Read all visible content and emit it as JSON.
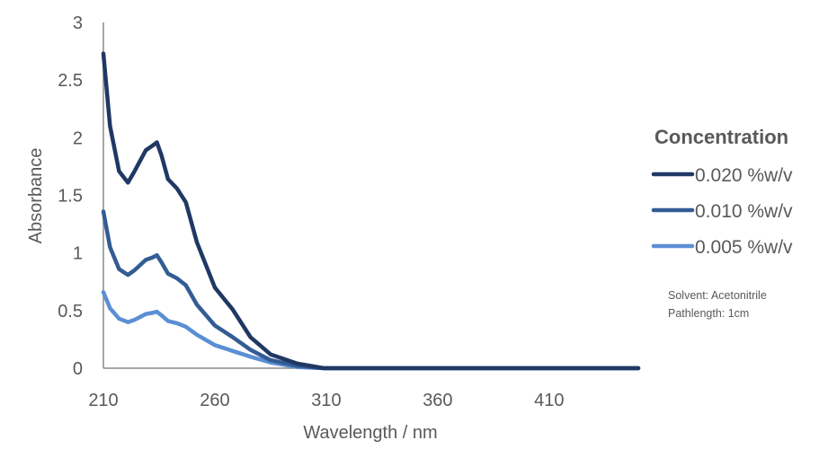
{
  "chart_data": {
    "type": "line",
    "title": "",
    "xlabel": "Wavelength / nm",
    "ylabel": "Absorbance",
    "xlim": [
      210,
      450
    ],
    "ylim": [
      0,
      3
    ],
    "x_ticks": [
      "210",
      "260",
      "310",
      "360",
      "410"
    ],
    "y_ticks": [
      "0",
      "0.5",
      "1",
      "1.5",
      "2",
      "2.5",
      "3"
    ],
    "grid": false,
    "legend_title": "Concentration",
    "legend_position": "right",
    "x": [
      210,
      213,
      217,
      221,
      224,
      229,
      232,
      234,
      236,
      239,
      243,
      247,
      252,
      260,
      268,
      276,
      285,
      297,
      309,
      330,
      360,
      400,
      450
    ],
    "series": [
      {
        "name": "0.020 %w/v",
        "color": "#203864",
        "values": [
          2.73,
          2.1,
          1.71,
          1.61,
          1.71,
          1.89,
          1.93,
          1.96,
          1.85,
          1.64,
          1.56,
          1.44,
          1.09,
          0.7,
          0.51,
          0.27,
          0.12,
          0.04,
          0.0,
          0.0,
          0.0,
          0.0,
          0.0
        ]
      },
      {
        "name": "0.010 %w/v",
        "color": "#335c94",
        "values": [
          1.36,
          1.05,
          0.86,
          0.81,
          0.85,
          0.94,
          0.96,
          0.98,
          0.92,
          0.82,
          0.78,
          0.72,
          0.55,
          0.37,
          0.27,
          0.16,
          0.07,
          0.02,
          0.0,
          0.0,
          0.0,
          0.0,
          0.0
        ]
      },
      {
        "name": "0.005 %w/v",
        "color": "#5b8fd4",
        "values": [
          0.66,
          0.52,
          0.43,
          0.4,
          0.42,
          0.47,
          0.48,
          0.49,
          0.46,
          0.41,
          0.39,
          0.36,
          0.29,
          0.2,
          0.15,
          0.1,
          0.05,
          0.01,
          0.0,
          0.0,
          0.0,
          0.0,
          0.0
        ]
      }
    ],
    "annotations": [
      "Solvent: Acetonitrile",
      "Pathlength: 1cm"
    ]
  }
}
